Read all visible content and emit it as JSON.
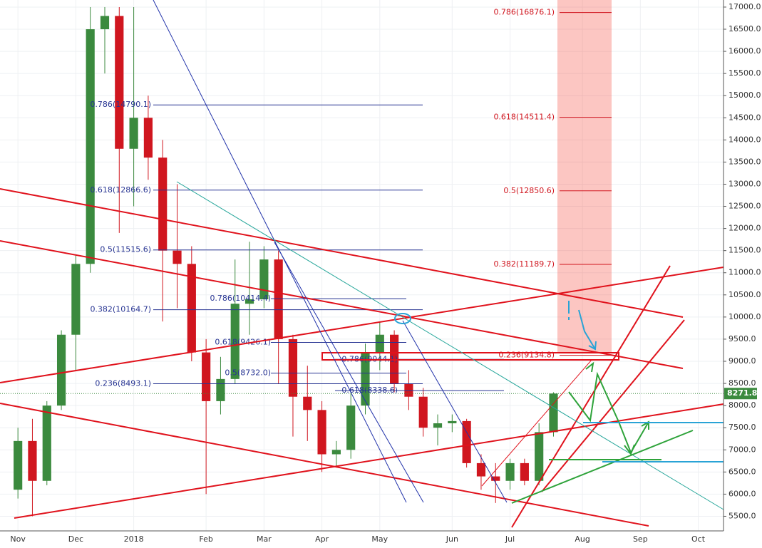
{
  "chart_data": {
    "type": "candlestick",
    "categories": [
      "Nov",
      null,
      null,
      null,
      "Dec",
      null,
      null,
      null,
      "2018",
      null,
      null,
      null,
      null,
      "Feb",
      null,
      null,
      null,
      "Mar",
      null,
      null,
      null,
      "Apr",
      null,
      null,
      null,
      "May",
      null,
      null,
      null,
      null,
      "Jun",
      null,
      null,
      null,
      "Jul",
      null,
      null,
      null,
      null,
      "Aug",
      null,
      null,
      null,
      "Sep",
      null,
      null,
      null,
      "Oct",
      null
    ],
    "open": [
      6100,
      7200,
      6300,
      8000,
      9600,
      11200,
      16500,
      16800,
      13800,
      14500,
      13600,
      11500,
      11200,
      9200,
      8100,
      8600,
      10300,
      10400,
      11300,
      9500,
      8200,
      7900,
      6900,
      7000,
      8000,
      9200,
      9600,
      8500,
      8200,
      7500,
      7600,
      7650,
      6700,
      6400,
      6300,
      6700,
      6300,
      7400,
      null,
      null,
      null,
      null,
      null,
      null,
      null,
      null,
      null,
      null,
      null
    ],
    "high": [
      7500,
      7700,
      8100,
      9700,
      11400,
      17000,
      17000,
      17000,
      17000,
      15000,
      14000,
      13000,
      11600,
      9500,
      9100,
      11300,
      11700,
      11600,
      11500,
      9600,
      8900,
      8100,
      7200,
      8300,
      9400,
      9900,
      9700,
      8800,
      8400,
      7800,
      7800,
      7700,
      6900,
      6700,
      6800,
      6800,
      7600,
      8300,
      null,
      null,
      null,
      null,
      null,
      null,
      null,
      null,
      null,
      null,
      null
    ],
    "low": [
      5900,
      5500,
      6200,
      7900,
      8800,
      11000,
      15500,
      11900,
      12500,
      13100,
      9900,
      10200,
      9000,
      6000,
      7800,
      8500,
      9600,
      10200,
      8500,
      7300,
      7200,
      6500,
      6600,
      6800,
      7800,
      8800,
      8300,
      7900,
      7300,
      7100,
      7400,
      6600,
      6100,
      5800,
      6100,
      6200,
      6200,
      7300,
      null,
      null,
      null,
      null,
      null,
      null,
      null,
      null,
      null,
      null,
      null
    ],
    "close": [
      7200,
      6300,
      8000,
      9600,
      11200,
      16500,
      16800,
      13800,
      14500,
      13600,
      11500,
      11200,
      9200,
      8100,
      8600,
      10300,
      10400,
      11300,
      9500,
      8200,
      7900,
      6900,
      7000,
      8000,
      9200,
      9600,
      8500,
      8200,
      7500,
      7600,
      7650,
      6700,
      6400,
      6300,
      6700,
      6300,
      7400,
      8271.8,
      null,
      null,
      null,
      null,
      null,
      null,
      null,
      null,
      null,
      null,
      null
    ],
    "up_color": "#3b8a3e",
    "down_color": "#d0161f",
    "ylim": [
      5250,
      17160
    ],
    "yticks": [
      {
        "value": 5500,
        "label": "5500.0"
      },
      {
        "value": 6000,
        "label": "6000.0"
      },
      {
        "value": 6500,
        "label": "6500.0"
      },
      {
        "value": 7000,
        "label": "7000.0"
      },
      {
        "value": 7500,
        "label": "7500.0"
      },
      {
        "value": 8000,
        "label": "8000.0"
      },
      {
        "value": 8500,
        "label": "8500.0"
      },
      {
        "value": 9000,
        "label": "9000.0"
      },
      {
        "value": 9500,
        "label": "9500.0"
      },
      {
        "value": 10000,
        "label": "10000.0"
      },
      {
        "value": 10500,
        "label": "10500.0"
      },
      {
        "value": 11000,
        "label": "11000.0"
      },
      {
        "value": 11500,
        "label": "11500.0"
      },
      {
        "value": 12000,
        "label": "12000.0"
      },
      {
        "value": 12500,
        "label": "12500.0"
      },
      {
        "value": 13000,
        "label": "13000.0"
      },
      {
        "value": 13500,
        "label": "13500.0"
      },
      {
        "value": 14000,
        "label": "14000.0"
      },
      {
        "value": 14500,
        "label": "14500.0"
      },
      {
        "value": 15000,
        "label": "15000.0"
      },
      {
        "value": 15500,
        "label": "15500.0"
      },
      {
        "value": 16000,
        "label": "16000.0"
      },
      {
        "value": 16500,
        "label": "16500.0"
      },
      {
        "value": 17000,
        "label": "17000.0"
      }
    ],
    "last_price": 8271.8,
    "fib_groups": [
      {
        "color": "#283593",
        "levels": [
          {
            "value": 14790.1,
            "label": "0.786(14790.1)"
          },
          {
            "value": 12866.6,
            "label": "0.618(12866.6)"
          },
          {
            "value": 11515.6,
            "label": "0.5(11515.6)"
          },
          {
            "value": 10164.7,
            "label": "0.382(10164.7)"
          },
          {
            "value": 8493.1,
            "label": "0.236(8493.1)"
          }
        ]
      },
      {
        "color": "#283593",
        "levels": [
          {
            "value": 10414.4,
            "label": "0.786(10414.4)"
          },
          {
            "value": 9426.1,
            "label": "0.618(9426.1)"
          },
          {
            "value": 8732.0,
            "label": "0.5(8732.0)"
          }
        ]
      },
      {
        "color": "#283593",
        "levels": [
          {
            "value": 9044.1,
            "label": "0.786(9044.1)"
          },
          {
            "value": 8338.6,
            "label": "0.618(8338.6)"
          }
        ]
      },
      {
        "color": "#d0161f",
        "levels": [
          {
            "value": 16876.1,
            "label": "0.786(16876.1)"
          },
          {
            "value": 14511.4,
            "label": "0.618(14511.4)"
          },
          {
            "value": 12850.6,
            "label": "0.5(12850.6)"
          },
          {
            "value": 11189.7,
            "label": "0.382(11189.7)"
          },
          {
            "value": 9134.8,
            "label": "0.236(9134.8)"
          }
        ]
      }
    ]
  }
}
